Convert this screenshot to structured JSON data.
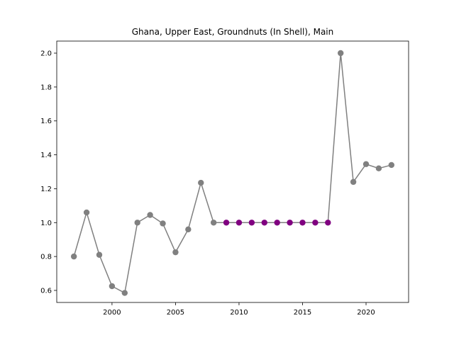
{
  "chart_data": {
    "type": "line",
    "title": "Ghana, Upper East, Groundnuts (In Shell), Main",
    "xlabel": "",
    "ylabel": "",
    "xlim": [
      1995.65,
      2023.35
    ],
    "ylim": [
      0.5289,
      2.0711
    ],
    "x_ticks": [
      2000,
      2005,
      2010,
      2015,
      2020
    ],
    "y_ticks": [
      0.6,
      0.8,
      1.0,
      1.2,
      1.4,
      1.6,
      1.8,
      2.0
    ],
    "x_tick_labels": [
      "2000",
      "2005",
      "2010",
      "2015",
      "2020"
    ],
    "y_tick_labels": [
      "0.6",
      "0.8",
      "1.0",
      "1.2",
      "1.4",
      "1.6",
      "1.8",
      "2.0"
    ],
    "grid": false,
    "line_color": "#808080",
    "highlight_color": "#800080",
    "series": [
      {
        "x": [
          1997,
          1998,
          1999,
          2000,
          2001,
          2002,
          2003,
          2004,
          2005,
          2006,
          2007,
          2008,
          2009,
          2010,
          2011,
          2012,
          2013,
          2014,
          2015,
          2016,
          2017,
          2018,
          2019,
          2020,
          2021,
          2022
        ],
        "values": [
          0.8,
          1.06,
          0.81,
          0.625,
          0.585,
          1.0,
          1.045,
          0.995,
          0.825,
          0.96,
          1.235,
          1.0,
          1.0,
          1.0,
          1.0,
          1.0,
          1.0,
          1.0,
          1.0,
          1.0,
          1.0,
          2.0,
          1.24,
          1.345,
          1.32,
          1.34
        ],
        "highlighted_x": [
          2009,
          2010,
          2011,
          2012,
          2013,
          2014,
          2015,
          2016,
          2017
        ]
      }
    ]
  }
}
